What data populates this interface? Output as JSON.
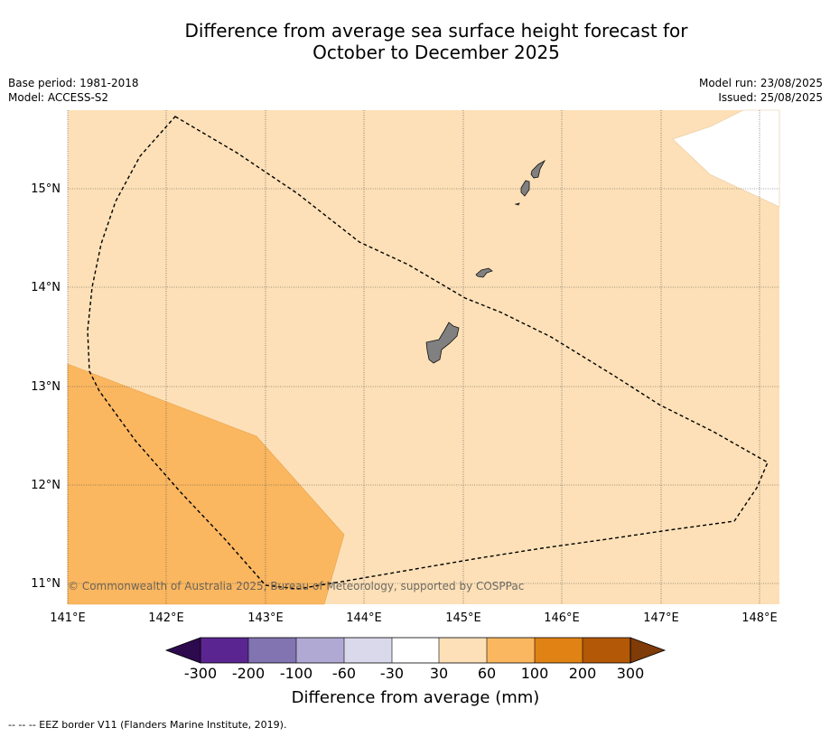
{
  "title": {
    "line1": "Difference from average sea surface height forecast for",
    "line2": "October to December 2025"
  },
  "meta": {
    "base_period": "Base period: 1981-2018",
    "model": "Model: ACCESS-S2",
    "model_run": "Model run: 23/08/2025",
    "issued": "Issued: 25/08/2025"
  },
  "map": {
    "longitude_labels": [
      "141°E",
      "142°E",
      "143°E",
      "144°E",
      "145°E",
      "146°E",
      "147°E",
      "148°E"
    ],
    "latitude_labels": [
      "15°N",
      "14°N",
      "13°N",
      "12°N",
      "11°N"
    ],
    "background_color": "#fde0b7",
    "higher_zone_color": "#fab760",
    "land_color": "#808080",
    "copyright": "© Commonwealth of Australia 2025, Bureau of Meteorology, supported by COSPPac"
  },
  "colorbar": {
    "title": "Difference from average (mm)",
    "tick_labels": [
      "-300",
      "-200",
      "-100",
      "-60",
      "-30",
      "30",
      "60",
      "100",
      "200",
      "300"
    ],
    "colors": [
      "#2d0a4e",
      "#5a2590",
      "#8273b1",
      "#b0a9d3",
      "#d9d9eb",
      "#ffffff",
      "#fde0b7",
      "#fab760",
      "#e08214",
      "#b35806",
      "#7f3b08"
    ]
  },
  "footnote": "--  --  -- EEZ border V11 (Flanders Marine Institute, 2019)."
}
